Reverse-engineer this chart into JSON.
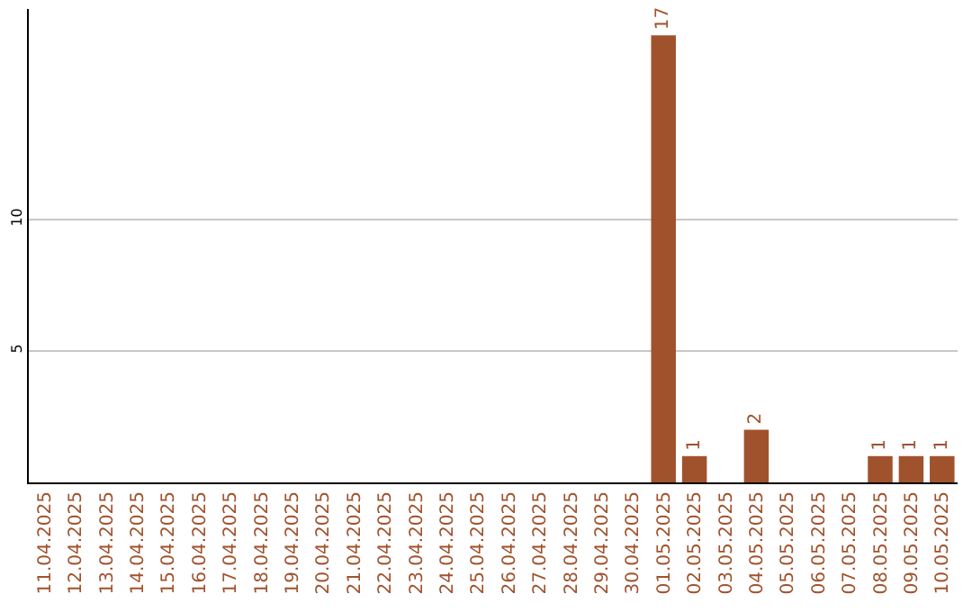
{
  "chart_data": {
    "type": "bar",
    "categories": [
      "11.04.2025",
      "12.04.2025",
      "13.04.2025",
      "14.04.2025",
      "15.04.2025",
      "16.04.2025",
      "17.04.2025",
      "18.04.2025",
      "19.04.2025",
      "20.04.2025",
      "21.04.2025",
      "22.04.2025",
      "23.04.2025",
      "24.04.2025",
      "25.04.2025",
      "26.04.2025",
      "27.04.2025",
      "28.04.2025",
      "29.04.2025",
      "30.04.2025",
      "01.05.2025",
      "02.05.2025",
      "03.05.2025",
      "04.05.2025",
      "05.05.2025",
      "06.05.2025",
      "07.05.2025",
      "08.05.2025",
      "09.05.2025",
      "10.05.2025"
    ],
    "series": [
      {
        "color": "#a0522d",
        "values": [
          0,
          0,
          0,
          0,
          0,
          0,
          0,
          0,
          0,
          0,
          0,
          0,
          0,
          0,
          0,
          0,
          0,
          0,
          0,
          0,
          17,
          1,
          0,
          2,
          0,
          0,
          0,
          1,
          1,
          1
        ],
        "value_labels": [
          null,
          null,
          null,
          null,
          null,
          null,
          null,
          null,
          null,
          null,
          null,
          null,
          null,
          null,
          null,
          null,
          null,
          null,
          null,
          null,
          "17",
          "1",
          null,
          "2",
          null,
          null,
          null,
          "1",
          "1",
          "1"
        ]
      }
    ],
    "ylim": [
      0,
      18
    ],
    "yticks": [
      5,
      10
    ],
    "grid": "y"
  }
}
